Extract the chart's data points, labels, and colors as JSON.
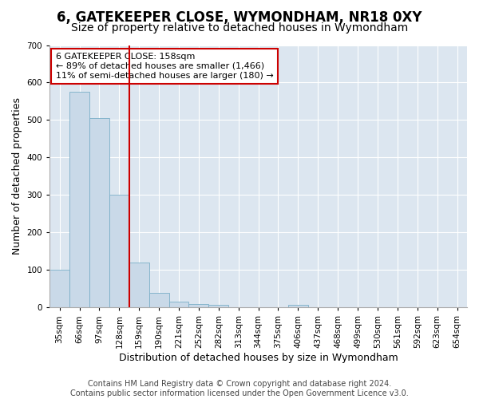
{
  "title": "6, GATEKEEPER CLOSE, WYMONDHAM, NR18 0XY",
  "subtitle": "Size of property relative to detached houses in Wymondham",
  "xlabel": "Distribution of detached houses by size in Wymondham",
  "ylabel": "Number of detached properties",
  "footer_line1": "Contains HM Land Registry data © Crown copyright and database right 2024.",
  "footer_line2": "Contains public sector information licensed under the Open Government Licence v3.0.",
  "bins": [
    "35sqm",
    "66sqm",
    "97sqm",
    "128sqm",
    "159sqm",
    "190sqm",
    "221sqm",
    "252sqm",
    "282sqm",
    "313sqm",
    "344sqm",
    "375sqm",
    "406sqm",
    "437sqm",
    "468sqm",
    "499sqm",
    "530sqm",
    "561sqm",
    "592sqm",
    "623sqm",
    "654sqm"
  ],
  "counts": [
    100,
    575,
    505,
    300,
    120,
    38,
    15,
    10,
    8,
    0,
    0,
    0,
    8,
    0,
    0,
    0,
    0,
    0,
    0,
    0,
    0
  ],
  "bar_color": "#c9d9e8",
  "bar_edge_color": "#7aafc8",
  "red_line_bin_index": 4,
  "red_line_color": "#cc0000",
  "annotation_text": "6 GATEKEEPER CLOSE: 158sqm\n← 89% of detached houses are smaller (1,466)\n11% of semi-detached houses are larger (180) →",
  "annotation_box_color": "#ffffff",
  "annotation_box_edge": "#cc0000",
  "ylim": [
    0,
    700
  ],
  "yticks": [
    0,
    100,
    200,
    300,
    400,
    500,
    600,
    700
  ],
  "plot_bg_color": "#dce6f0",
  "fig_bg_color": "#ffffff",
  "grid_color": "#ffffff",
  "title_fontsize": 12,
  "subtitle_fontsize": 10,
  "axis_label_fontsize": 9,
  "tick_fontsize": 7.5,
  "footer_fontsize": 7,
  "annotation_fontsize": 8
}
